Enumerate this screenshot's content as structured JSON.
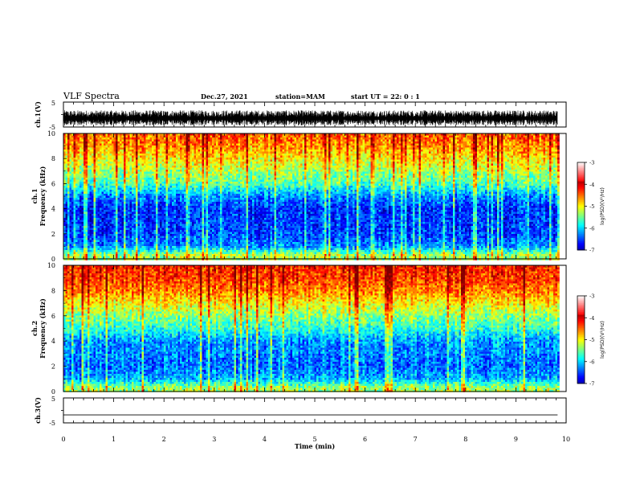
{
  "header": {
    "title": "VLF Spectra",
    "date": "Dec.27, 2021",
    "station": "station=MAM",
    "start": "start UT =  22: 0  : 1"
  },
  "chart_data": [
    {
      "type": "line",
      "panel": "ch1-waveform",
      "ylabel": "ch.1(V)",
      "yticks": [
        "5",
        "-5"
      ],
      "ylim": [
        -5,
        5
      ],
      "xlim": [
        0,
        10
      ],
      "data_xrange": [
        0,
        9.83
      ],
      "signal": "noisy waveform, amplitude approx 0.5 to 3 V, offset approx -1.5 V"
    },
    {
      "type": "heatmap",
      "panel": "ch1-spectrogram",
      "ylabel_top": "ch.1",
      "ylabel": "Frequency (kHz)",
      "yticks": [
        "0",
        "2",
        "4",
        "6",
        "8",
        "10"
      ],
      "ylim": [
        0,
        10
      ],
      "xlim": [
        0,
        10
      ],
      "data_xrange": [
        0,
        9.83
      ],
      "approx_level_profile_log10": [
        {
          "freq_khz": 0.3,
          "value": -4.8
        },
        {
          "freq_khz": 1,
          "value": -6.0
        },
        {
          "freq_khz": 2,
          "value": -6.3
        },
        {
          "freq_khz": 4,
          "value": -6.4
        },
        {
          "freq_khz": 5,
          "value": -6.0
        },
        {
          "freq_khz": 6,
          "value": -5.2
        },
        {
          "freq_khz": 7,
          "value": -4.8
        },
        {
          "freq_khz": 8,
          "value": -4.4
        },
        {
          "freq_khz": 9,
          "value": -4.0
        },
        {
          "freq_khz": 10,
          "value": -3.8
        }
      ],
      "colorbar": {
        "label": "log(PSD)(V²/Hz)",
        "ticks": [
          "-3",
          "-4",
          "-5",
          "-6",
          "-7"
        ],
        "range": [
          -7,
          -3
        ]
      }
    },
    {
      "type": "heatmap",
      "panel": "ch2-spectrogram",
      "ylabel_top": "ch.2",
      "ylabel": "Frequency (kHz)",
      "yticks": [
        "0",
        "2",
        "4",
        "6",
        "8",
        "10"
      ],
      "ylim": [
        0,
        10
      ],
      "xlim": [
        0,
        10
      ],
      "data_xrange": [
        0,
        9.83
      ],
      "approx_level_profile_log10": [
        {
          "freq_khz": 0.3,
          "value": -4.8
        },
        {
          "freq_khz": 1,
          "value": -5.8
        },
        {
          "freq_khz": 2,
          "value": -6.1
        },
        {
          "freq_khz": 4,
          "value": -5.9
        },
        {
          "freq_khz": 5,
          "value": -5.3
        },
        {
          "freq_khz": 6,
          "value": -4.9
        },
        {
          "freq_khz": 7,
          "value": -4.4
        },
        {
          "freq_khz": 8,
          "value": -3.9
        },
        {
          "freq_khz": 9,
          "value": -3.6
        },
        {
          "freq_khz": 10,
          "value": -3.5
        }
      ],
      "colorbar": {
        "label": "log(PSD)(V²/Hz)",
        "ticks": [
          "-3",
          "-4",
          "-5",
          "-6",
          "-7"
        ],
        "range": [
          -7,
          -3
        ]
      }
    },
    {
      "type": "line",
      "panel": "ch3-waveform",
      "ylabel": "ch.3(V)",
      "yticks": [
        "5",
        "-5"
      ],
      "ylim": [
        -5,
        5
      ],
      "xlim": [
        0,
        10
      ],
      "data_xrange": [
        0,
        9.83
      ],
      "signal": "flat line at approx -1.8 V",
      "xlabel": "Time (min)",
      "xticks": [
        "0",
        "1",
        "2",
        "3",
        "4",
        "5",
        "6",
        "7",
        "8",
        "9",
        "10"
      ]
    }
  ],
  "colors": {
    "frame": "#000000",
    "background": "#ffffff"
  }
}
